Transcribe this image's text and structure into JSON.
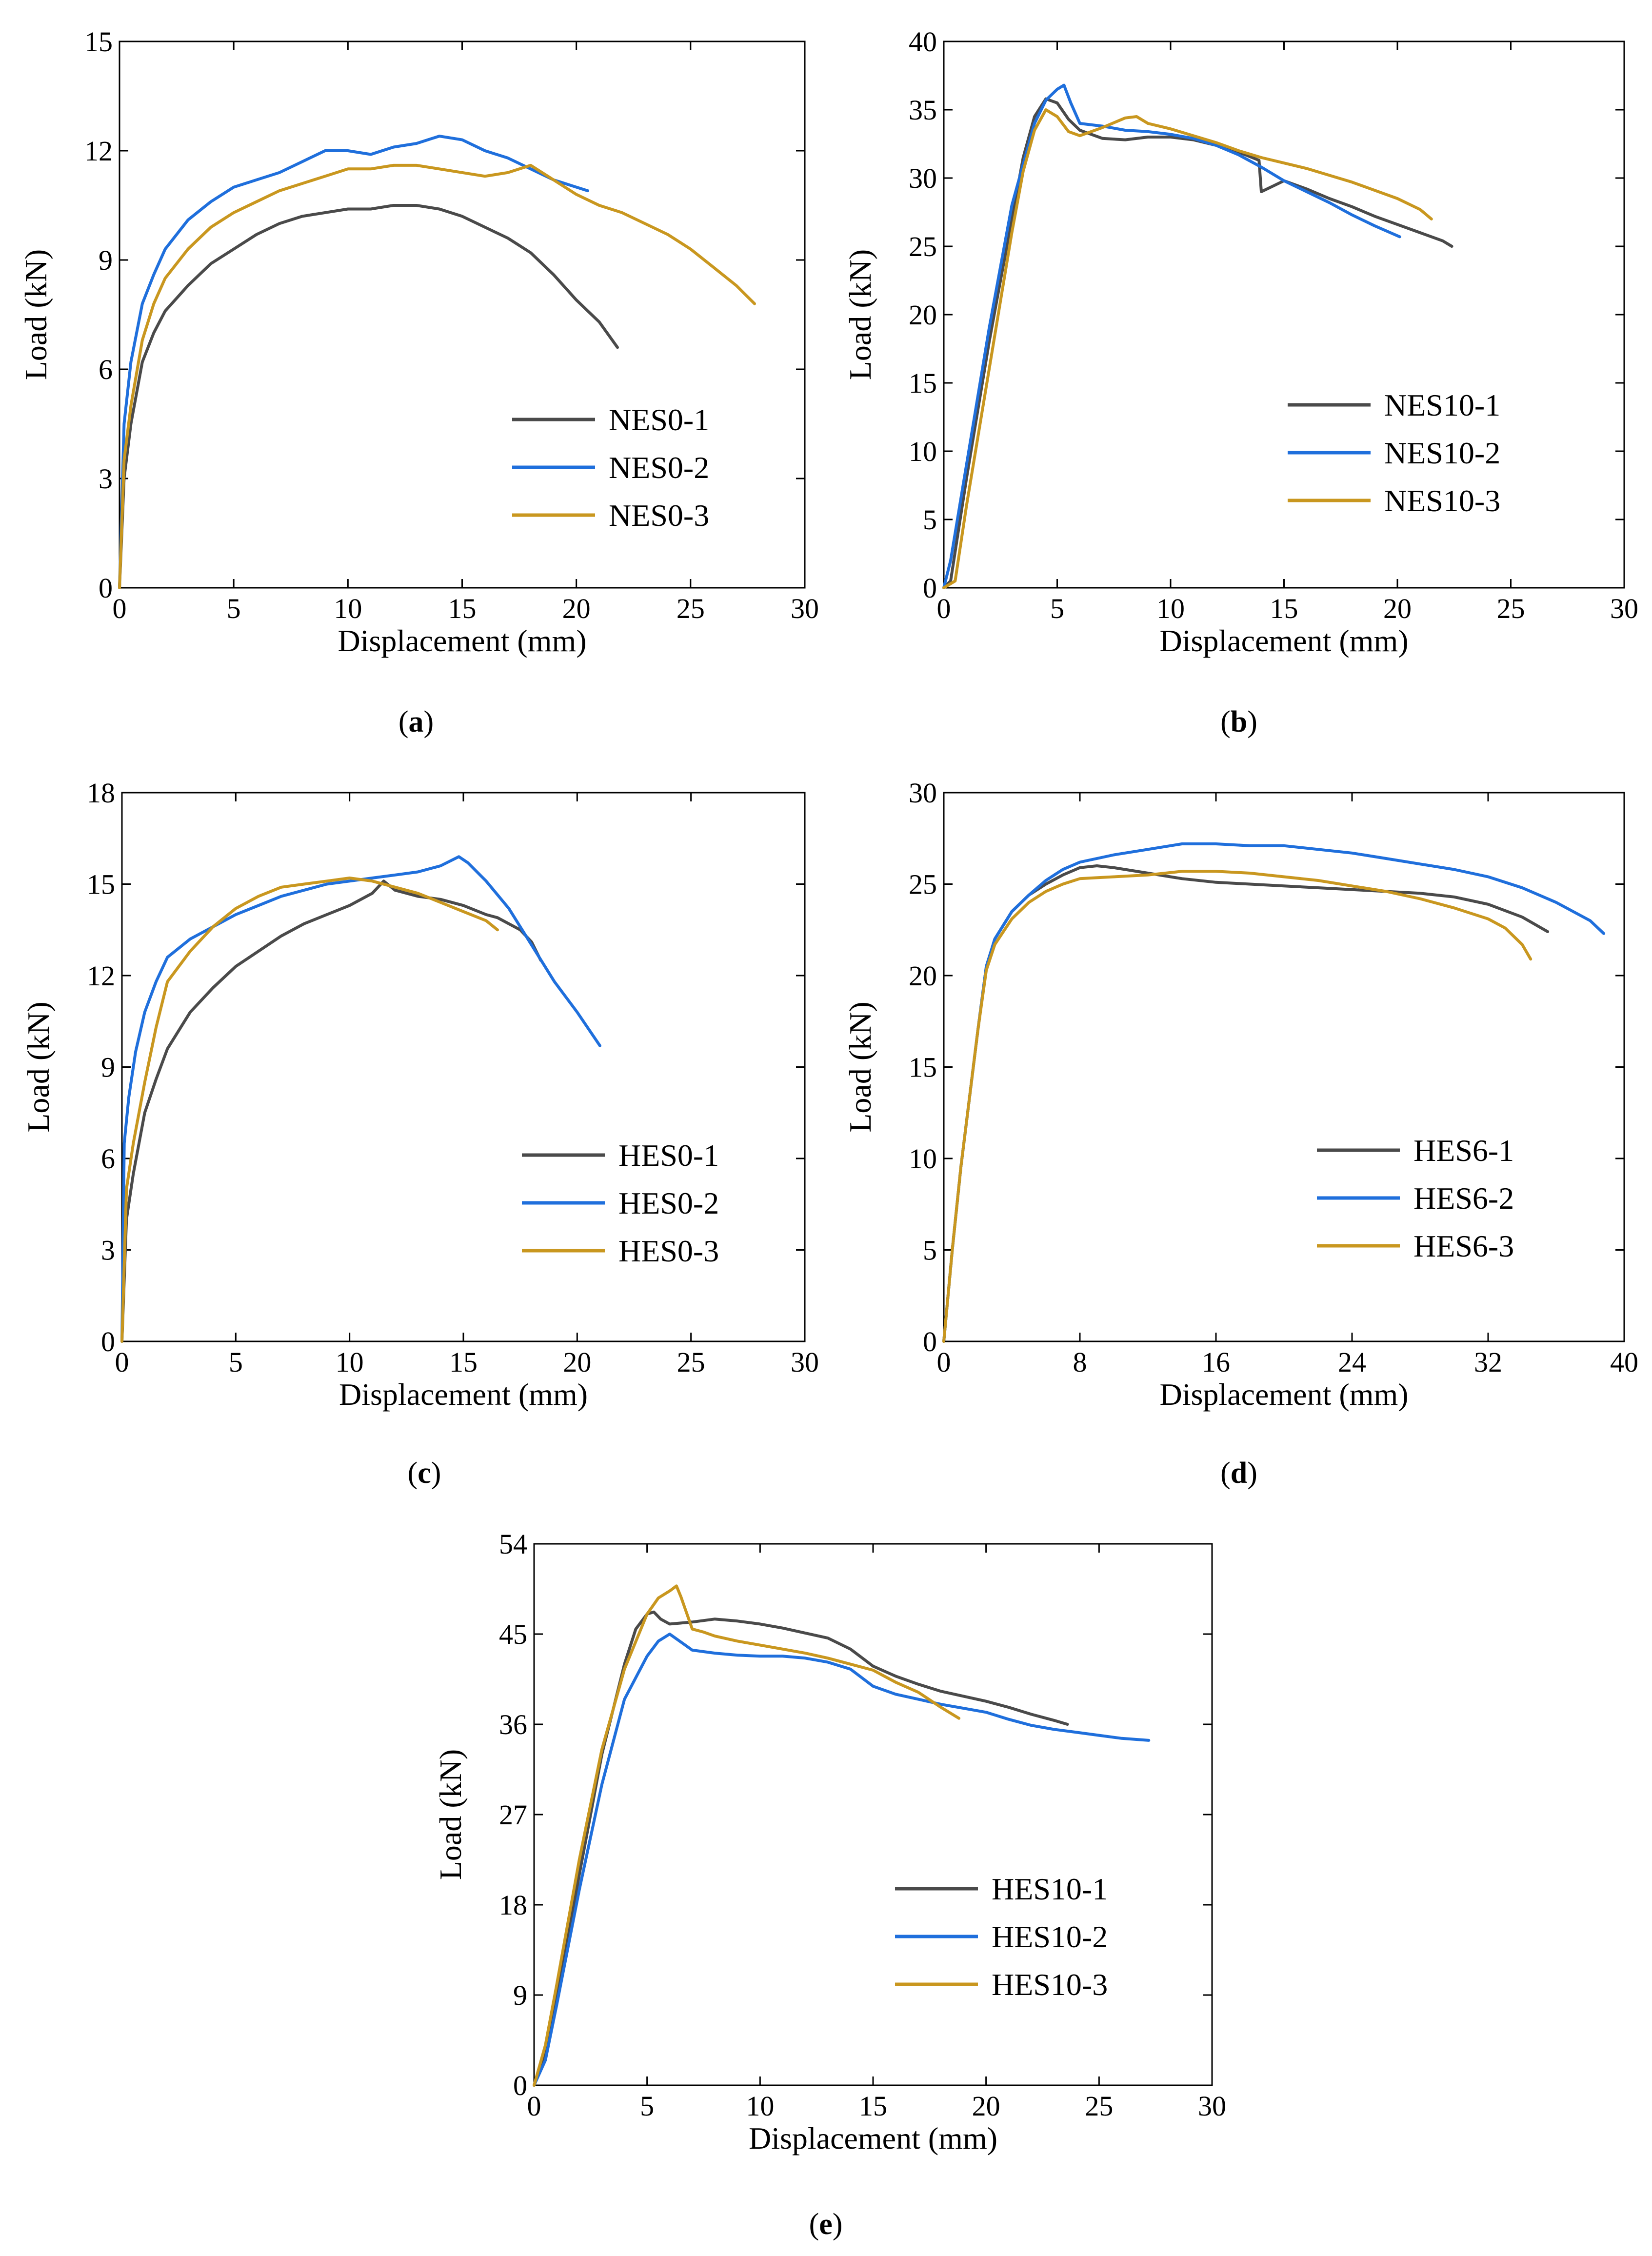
{
  "figure": {
    "charts": [
      {
        "id": "a",
        "caption_letter": "a"
      },
      {
        "id": "b",
        "caption_letter": "b"
      },
      {
        "id": "c",
        "caption_letter": "c"
      },
      {
        "id": "d",
        "caption_letter": "d"
      },
      {
        "id": "e",
        "caption_letter": "e"
      }
    ]
  },
  "chart_data": [
    {
      "id": "a",
      "type": "line",
      "xlabel": "Displacement (mm)",
      "ylabel": "Load (kN)",
      "xlim": [
        0,
        30
      ],
      "ylim": [
        0,
        15
      ],
      "xticks": [
        0,
        5,
        10,
        15,
        20,
        25,
        30
      ],
      "yticks": [
        0,
        3,
        6,
        9,
        12,
        15
      ],
      "legend_position": "lower-right",
      "series": [
        {
          "name": "NES0-1",
          "color": "#4a4a4a",
          "x": [
            0,
            0.2,
            0.5,
            1,
            1.5,
            2,
            3,
            4,
            5,
            6,
            7,
            8,
            9,
            10,
            11,
            12,
            13,
            14,
            15,
            16,
            17,
            18,
            19,
            20,
            21,
            21.8
          ],
          "y": [
            0,
            3,
            4.5,
            6.2,
            7,
            7.6,
            8.3,
            8.9,
            9.3,
            9.7,
            10,
            10.2,
            10.3,
            10.4,
            10.4,
            10.5,
            10.5,
            10.4,
            10.2,
            9.9,
            9.6,
            9.2,
            8.6,
            7.9,
            7.3,
            6.6
          ]
        },
        {
          "name": "NES0-2",
          "color": "#1f6fdc",
          "x": [
            0,
            0.2,
            0.5,
            1,
            1.5,
            2,
            3,
            4,
            5,
            6,
            7,
            8,
            9,
            10,
            11,
            12,
            13,
            14,
            15,
            16,
            17,
            18,
            19,
            20,
            20.5
          ],
          "y": [
            0,
            4.5,
            6.2,
            7.8,
            8.6,
            9.3,
            10.1,
            10.6,
            11,
            11.2,
            11.4,
            11.7,
            12,
            12,
            11.9,
            12.1,
            12.2,
            12.4,
            12.3,
            12,
            11.8,
            11.5,
            11.2,
            11,
            10.9
          ]
        },
        {
          "name": "NES0-3",
          "color": "#c9971f",
          "x": [
            0,
            0.2,
            0.5,
            1,
            1.5,
            2,
            3,
            4,
            5,
            6,
            7,
            8,
            9,
            10,
            11,
            12,
            13,
            14,
            15,
            16,
            17,
            18,
            19,
            20,
            21,
            22,
            23,
            24,
            25,
            26,
            27,
            27.8
          ],
          "y": [
            0,
            3.5,
            5,
            6.8,
            7.8,
            8.5,
            9.3,
            9.9,
            10.3,
            10.6,
            10.9,
            11.1,
            11.3,
            11.5,
            11.5,
            11.6,
            11.6,
            11.5,
            11.4,
            11.3,
            11.4,
            11.6,
            11.2,
            10.8,
            10.5,
            10.3,
            10,
            9.7,
            9.3,
            8.8,
            8.3,
            7.8
          ]
        }
      ]
    },
    {
      "id": "b",
      "type": "line",
      "xlabel": "Displacement (mm)",
      "ylabel": "Load (kN)",
      "xlim": [
        0,
        30
      ],
      "ylim": [
        0,
        40
      ],
      "xticks": [
        0,
        5,
        10,
        15,
        20,
        25,
        30
      ],
      "yticks": [
        0,
        5,
        10,
        15,
        20,
        25,
        30,
        35,
        40
      ],
      "legend_position": "lower-right",
      "series": [
        {
          "name": "NES10-1",
          "color": "#4a4a4a",
          "x": [
            0,
            0.3,
            1,
            2,
            3,
            3.5,
            4,
            4.5,
            5,
            5.5,
            6,
            7,
            8,
            9,
            10,
            11,
            12,
            13,
            13.9,
            14,
            14.5,
            15,
            16,
            17,
            18,
            19,
            20,
            21,
            22,
            22.4
          ],
          "y": [
            0,
            0.5,
            8,
            18,
            27,
            31.5,
            34.5,
            35.8,
            35.5,
            34.3,
            33.5,
            32.9,
            32.8,
            33,
            33,
            32.8,
            32.4,
            31.9,
            31.3,
            29,
            29.4,
            29.8,
            29.2,
            28.5,
            27.9,
            27.2,
            26.6,
            26,
            25.4,
            25
          ]
        },
        {
          "name": "NES10-2",
          "color": "#1f6fdc",
          "x": [
            0,
            0.3,
            1,
            2,
            3,
            4,
            4.5,
            5,
            5.3,
            5.6,
            6,
            7,
            8,
            9,
            10,
            11,
            12,
            13,
            14,
            15,
            16,
            17,
            18,
            19,
            20.1
          ],
          "y": [
            0,
            2,
            9,
            19,
            28,
            34,
            35.7,
            36.5,
            36.8,
            35.5,
            34,
            33.8,
            33.5,
            33.4,
            33.2,
            32.9,
            32.4,
            31.7,
            30.8,
            29.8,
            29,
            28.2,
            27.3,
            26.5,
            25.7
          ]
        },
        {
          "name": "NES10-3",
          "color": "#c9971f",
          "x": [
            0,
            0.5,
            1,
            2,
            3,
            3.5,
            4,
            4.5,
            5,
            5.5,
            6,
            7,
            8,
            8.5,
            9,
            10,
            11,
            12,
            13,
            14,
            15,
            16,
            17,
            18,
            19,
            20,
            21,
            21.5
          ],
          "y": [
            0,
            0.5,
            6,
            16,
            26,
            30.5,
            33.5,
            35,
            34.5,
            33.4,
            33.1,
            33.7,
            34.4,
            34.5,
            34,
            33.6,
            33.1,
            32.6,
            32,
            31.5,
            31.1,
            30.7,
            30.2,
            29.7,
            29.1,
            28.5,
            27.7,
            27
          ]
        }
      ]
    },
    {
      "id": "c",
      "type": "line",
      "xlabel": "Displacement (mm)",
      "ylabel": "Load (kN)",
      "xlim": [
        0,
        30
      ],
      "ylim": [
        0,
        18
      ],
      "xticks": [
        0,
        5,
        10,
        15,
        20,
        25,
        30
      ],
      "yticks": [
        0,
        3,
        6,
        9,
        12,
        15,
        18
      ],
      "legend_position": "lower-right",
      "series": [
        {
          "name": "HES0-1",
          "color": "#4a4a4a",
          "x": [
            0,
            0.2,
            0.5,
            1,
            1.5,
            2,
            3,
            4,
            5,
            6,
            7,
            8,
            9,
            10,
            11,
            11.5,
            12,
            13,
            14,
            15,
            16,
            16.5,
            17,
            17.5,
            18,
            18.4
          ],
          "y": [
            0,
            4,
            5.5,
            7.5,
            8.6,
            9.6,
            10.8,
            11.6,
            12.3,
            12.8,
            13.3,
            13.7,
            14,
            14.3,
            14.7,
            15.1,
            14.8,
            14.6,
            14.5,
            14.3,
            14,
            13.9,
            13.7,
            13.5,
            13.1,
            12.5
          ]
        },
        {
          "name": "HES0-2",
          "color": "#1f6fdc",
          "x": [
            0,
            0.1,
            0.3,
            0.6,
            1,
            1.5,
            2,
            3,
            4,
            5,
            6,
            7,
            8,
            9,
            10,
            11,
            12,
            13,
            14,
            14.8,
            15.2,
            16,
            17,
            18,
            19,
            20,
            21
          ],
          "y": [
            0,
            6.5,
            8,
            9.5,
            10.8,
            11.8,
            12.6,
            13.2,
            13.6,
            14,
            14.3,
            14.6,
            14.8,
            15,
            15.1,
            15.2,
            15.3,
            15.4,
            15.6,
            15.9,
            15.7,
            15.1,
            14.2,
            13,
            11.8,
            10.8,
            9.7
          ]
        },
        {
          "name": "HES0-3",
          "color": "#c9971f",
          "x": [
            0,
            0.2,
            0.5,
            1,
            1.5,
            2,
            3,
            4,
            5,
            6,
            7,
            8,
            9,
            10,
            11,
            12,
            13,
            14,
            15,
            16,
            16.5
          ],
          "y": [
            0,
            5,
            6.5,
            8.5,
            10.3,
            11.8,
            12.8,
            13.6,
            14.2,
            14.6,
            14.9,
            15,
            15.1,
            15.2,
            15.1,
            14.9,
            14.7,
            14.4,
            14.1,
            13.8,
            13.5
          ]
        }
      ]
    },
    {
      "id": "d",
      "type": "line",
      "xlabel": "Displacement (mm)",
      "ylabel": "Load (kN)",
      "xlim": [
        0,
        40
      ],
      "ylim": [
        0,
        30
      ],
      "xticks": [
        0,
        8,
        16,
        24,
        32,
        40
      ],
      "yticks": [
        0,
        5,
        10,
        15,
        20,
        25,
        30
      ],
      "legend_position": "lower-right",
      "series": [
        {
          "name": "HES6-1",
          "color": "#4a4a4a",
          "x": [
            0,
            0.5,
            1,
            2,
            2.5,
            3,
            4,
            5,
            6,
            7,
            8,
            9,
            10,
            12,
            14,
            16,
            18,
            20,
            22,
            24,
            26,
            28,
            30,
            32,
            34,
            35.5
          ],
          "y": [
            0,
            5,
            9.5,
            17,
            20.5,
            22,
            23.5,
            24.4,
            25,
            25.5,
            25.9,
            26,
            25.9,
            25.6,
            25.3,
            25.1,
            25,
            24.9,
            24.8,
            24.7,
            24.6,
            24.5,
            24.3,
            23.9,
            23.2,
            22.4
          ]
        },
        {
          "name": "HES6-2",
          "color": "#1f6fdc",
          "x": [
            0,
            0.5,
            1,
            2,
            2.5,
            3,
            4,
            5,
            6,
            7,
            8,
            10,
            12,
            14,
            16,
            18,
            20,
            22,
            24,
            26,
            28,
            30,
            32,
            34,
            36,
            38,
            38.8
          ],
          "y": [
            0,
            5,
            9.5,
            17,
            20.5,
            22,
            23.5,
            24.4,
            25.2,
            25.8,
            26.2,
            26.6,
            26.9,
            27.2,
            27.2,
            27.1,
            27.1,
            26.9,
            26.7,
            26.4,
            26.1,
            25.8,
            25.4,
            24.8,
            24,
            23,
            22.3
          ]
        },
        {
          "name": "HES6-3",
          "color": "#c9971f",
          "x": [
            0,
            0.5,
            1,
            2,
            2.5,
            3,
            4,
            5,
            6,
            7,
            8,
            10,
            12,
            14,
            16,
            18,
            20,
            22,
            24,
            26,
            28,
            30,
            32,
            33,
            34,
            34.5
          ],
          "y": [
            0,
            5,
            9.5,
            17,
            20.3,
            21.7,
            23.1,
            24,
            24.6,
            25,
            25.3,
            25.4,
            25.5,
            25.7,
            25.7,
            25.6,
            25.4,
            25.2,
            24.9,
            24.6,
            24.2,
            23.7,
            23.1,
            22.6,
            21.7,
            20.9
          ]
        }
      ]
    },
    {
      "id": "e",
      "type": "line",
      "xlabel": "Displacement (mm)",
      "ylabel": "Load (kN)",
      "xlim": [
        0,
        30
      ],
      "ylim": [
        0,
        54
      ],
      "xticks": [
        0,
        5,
        10,
        15,
        20,
        25,
        30
      ],
      "yticks": [
        0,
        9,
        18,
        27,
        36,
        45,
        54
      ],
      "legend_position": "lower-right",
      "series": [
        {
          "name": "HES10-1",
          "color": "#4a4a4a",
          "x": [
            0,
            0.5,
            1,
            2,
            3,
            4,
            4.5,
            5,
            5.3,
            5.6,
            6,
            7,
            8,
            9,
            10,
            11,
            12,
            13,
            14,
            15,
            16,
            17,
            18,
            19,
            20,
            21,
            22,
            23,
            23.6
          ],
          "y": [
            0,
            3,
            9,
            21,
            33,
            42,
            45.5,
            47,
            47.2,
            46.5,
            46,
            46.2,
            46.5,
            46.3,
            46,
            45.6,
            45.1,
            44.6,
            43.5,
            41.8,
            40.8,
            40,
            39.3,
            38.8,
            38.3,
            37.7,
            37,
            36.4,
            36
          ]
        },
        {
          "name": "HES10-2",
          "color": "#1f6fdc",
          "x": [
            0,
            0.5,
            1,
            2,
            3,
            4,
            5,
            5.5,
            6,
            6.5,
            7,
            8,
            9,
            10,
            11,
            12,
            13,
            14,
            15,
            16,
            17,
            18,
            19,
            20,
            21,
            22,
            23,
            24,
            25,
            26,
            27.2
          ],
          "y": [
            0,
            2.5,
            8,
            19.5,
            30,
            38.5,
            42.8,
            44.3,
            45,
            44.2,
            43.4,
            43.1,
            42.9,
            42.8,
            42.8,
            42.6,
            42.2,
            41.5,
            39.8,
            39,
            38.5,
            38,
            37.6,
            37.2,
            36.5,
            35.9,
            35.5,
            35.2,
            34.9,
            34.6,
            34.4
          ]
        },
        {
          "name": "HES10-3",
          "color": "#c9971f",
          "x": [
            0,
            0.5,
            1,
            2,
            3,
            4,
            5,
            5.5,
            6,
            6.3,
            6.5,
            7,
            7.5,
            8,
            9,
            10,
            11,
            12,
            13,
            14,
            15,
            16,
            17,
            18,
            18.8
          ],
          "y": [
            0,
            4,
            10,
            22.5,
            33.5,
            41.5,
            47,
            48.6,
            49.3,
            49.8,
            48.7,
            45.5,
            45.2,
            44.8,
            44.3,
            43.9,
            43.5,
            43.1,
            42.6,
            42,
            41.4,
            40.2,
            39.2,
            37.7,
            36.6
          ]
        }
      ]
    }
  ]
}
